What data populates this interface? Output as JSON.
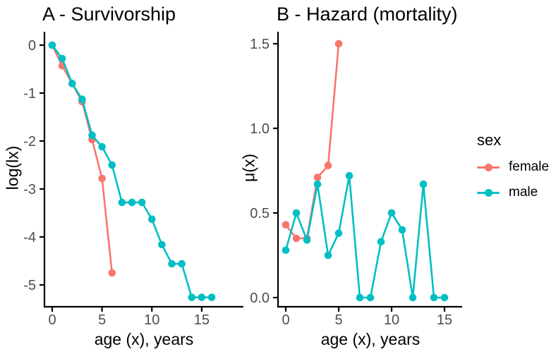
{
  "figure": {
    "background": "#ffffff",
    "axis_color": "#000000",
    "tick_label_color": "#4d4d4d"
  },
  "legend": {
    "title": "sex",
    "items": [
      {
        "label": "female",
        "color": "#F8766D"
      },
      {
        "label": "male",
        "color": "#00BFC4"
      }
    ]
  },
  "chart_data": [
    {
      "type": "line",
      "panel": "A",
      "title": "A - Survivorship",
      "xlabel": "age (x), years",
      "ylabel": "log(lx)",
      "xlim": [
        0,
        16
      ],
      "ylim": [
        -5.5,
        0.3
      ],
      "grid": false,
      "legend_position": "right-of-figure",
      "xticks": [
        0,
        5,
        10,
        15
      ],
      "xtick_labels": [
        "0",
        "5",
        "10",
        "15"
      ],
      "yticks": [
        0,
        -1,
        -2,
        -3,
        -4,
        -5
      ],
      "ytick_labels": [
        "0",
        "-1",
        "-2",
        "-3",
        "-4",
        "-5"
      ],
      "series": [
        {
          "name": "female",
          "color": "#F8766D",
          "x": [
            0,
            1,
            2,
            3,
            4,
            5,
            6
          ],
          "y": [
            0,
            -0.43,
            -0.8,
            -1.18,
            -1.97,
            -2.78,
            -4.75
          ]
        },
        {
          "name": "male",
          "color": "#00BFC4",
          "x": [
            0,
            1,
            2,
            3,
            4,
            5,
            6,
            7,
            8,
            9,
            10,
            11,
            12,
            13,
            14,
            15,
            16
          ],
          "y": [
            0,
            -0.28,
            -0.8,
            -1.13,
            -1.88,
            -2.12,
            -2.5,
            -3.28,
            -3.28,
            -3.28,
            -3.63,
            -4.16,
            -4.56,
            -4.56,
            -5.26,
            -5.26,
            -5.26
          ]
        }
      ]
    },
    {
      "type": "line",
      "panel": "B",
      "title": "B - Hazard (mortality)",
      "xlabel": "age (x), years",
      "ylabel": "μ(x)",
      "xlim": [
        0,
        16.5
      ],
      "ylim": [
        -0.05,
        1.57
      ],
      "grid": false,
      "xticks": [
        0,
        5,
        10,
        15
      ],
      "xtick_labels": [
        "0",
        "5",
        "10",
        "15"
      ],
      "yticks": [
        0,
        0.5,
        1.0,
        1.5
      ],
      "ytick_labels": [
        "0.0",
        "0.5",
        "1.0",
        "1.5"
      ],
      "series": [
        {
          "name": "female",
          "color": "#F8766D",
          "x": [
            0,
            1,
            2,
            3,
            4,
            5
          ],
          "y": [
            0.43,
            0.35,
            0.35,
            0.71,
            0.78,
            1.5
          ]
        },
        {
          "name": "male",
          "color": "#00BFC4",
          "x": [
            0,
            1,
            2,
            3,
            4,
            5,
            6,
            7,
            8,
            9,
            10,
            11,
            12,
            13,
            14,
            15
          ],
          "y": [
            0.28,
            0.5,
            0.34,
            0.67,
            0.25,
            0.38,
            0.72,
            0.0,
            0.0,
            0.33,
            0.5,
            0.4,
            0.0,
            0.67,
            0.0,
            0.0
          ]
        }
      ]
    }
  ]
}
